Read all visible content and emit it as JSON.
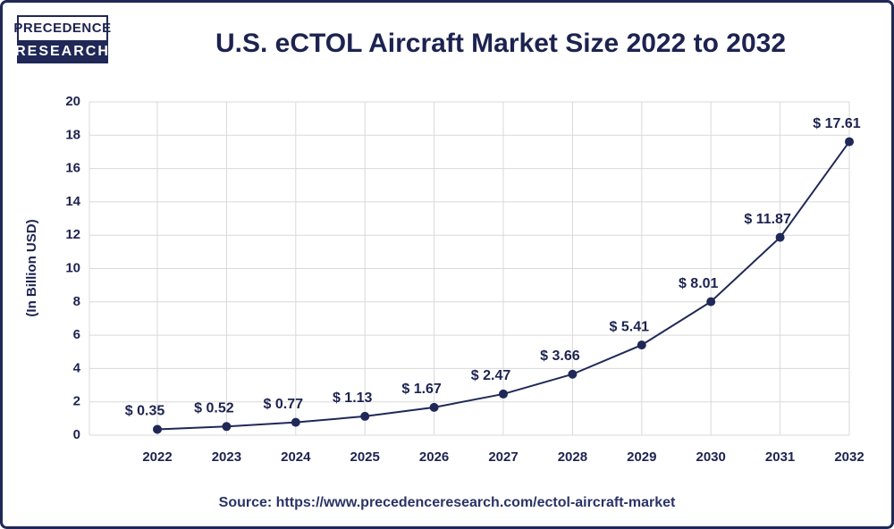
{
  "logo": {
    "line1": "PRECEDENCE",
    "line2": "RESEARCH"
  },
  "chart_data": {
    "type": "line",
    "title": "U.S. eCTOL Aircraft Market Size 2022 to 2032",
    "y_label": "(In Billion USD)",
    "source": "Source: https://www.precedenceresearch.com/ectol-aircraft-market",
    "categories": [
      "2022",
      "2023",
      "2024",
      "2025",
      "2026",
      "2027",
      "2028",
      "2029",
      "2030",
      "2031",
      "2032"
    ],
    "series": [
      {
        "name": "U.S. eCTOL Aircraft Market Size",
        "color": "#1f2857",
        "values": [
          0.35,
          0.52,
          0.77,
          1.13,
          1.67,
          2.47,
          3.66,
          5.41,
          8.01,
          11.87,
          17.61
        ],
        "value_labels": [
          "$ 0.35",
          "$ 0.52",
          "$ 0.77",
          "$ 1.13",
          "$ 1.67",
          "$ 2.47",
          "$ 3.66",
          "$ 5.41",
          "$ 8.01",
          "$ 11.87",
          "$ 17.61"
        ]
      }
    ],
    "ylim": [
      0,
      20
    ],
    "yticks": [
      0,
      2,
      4,
      6,
      8,
      10,
      12,
      14,
      16,
      18,
      20
    ],
    "grid": true
  }
}
